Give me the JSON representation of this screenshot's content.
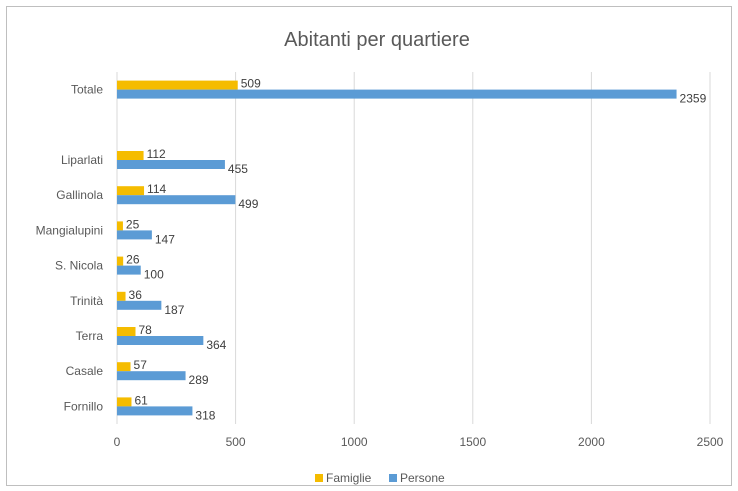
{
  "chart_data": {
    "type": "bar",
    "orientation": "horizontal",
    "title": "Abitanti per quartiere",
    "xlabel": "",
    "ylabel": "",
    "xlim": [
      0,
      2500
    ],
    "x_ticks": [
      "0",
      "500",
      "1000",
      "1500",
      "2000",
      "2500"
    ],
    "grid": "vertical",
    "legend_position": "bottom",
    "categories": [
      "Totale",
      "",
      "Liparlati",
      "Gallinola",
      "Mangialupini",
      "S. Nicola",
      "Trinità",
      "Terra",
      "Casale",
      "Fornillo"
    ],
    "series": [
      {
        "name": "Famiglie",
        "color": "#f5bc00",
        "values": [
          509,
          null,
          112,
          114,
          25,
          26,
          36,
          78,
          57,
          61
        ]
      },
      {
        "name": "Persone",
        "color": "#5b9bd5",
        "values": [
          2359,
          null,
          455,
          499,
          147,
          100,
          187,
          364,
          289,
          318
        ]
      }
    ]
  }
}
